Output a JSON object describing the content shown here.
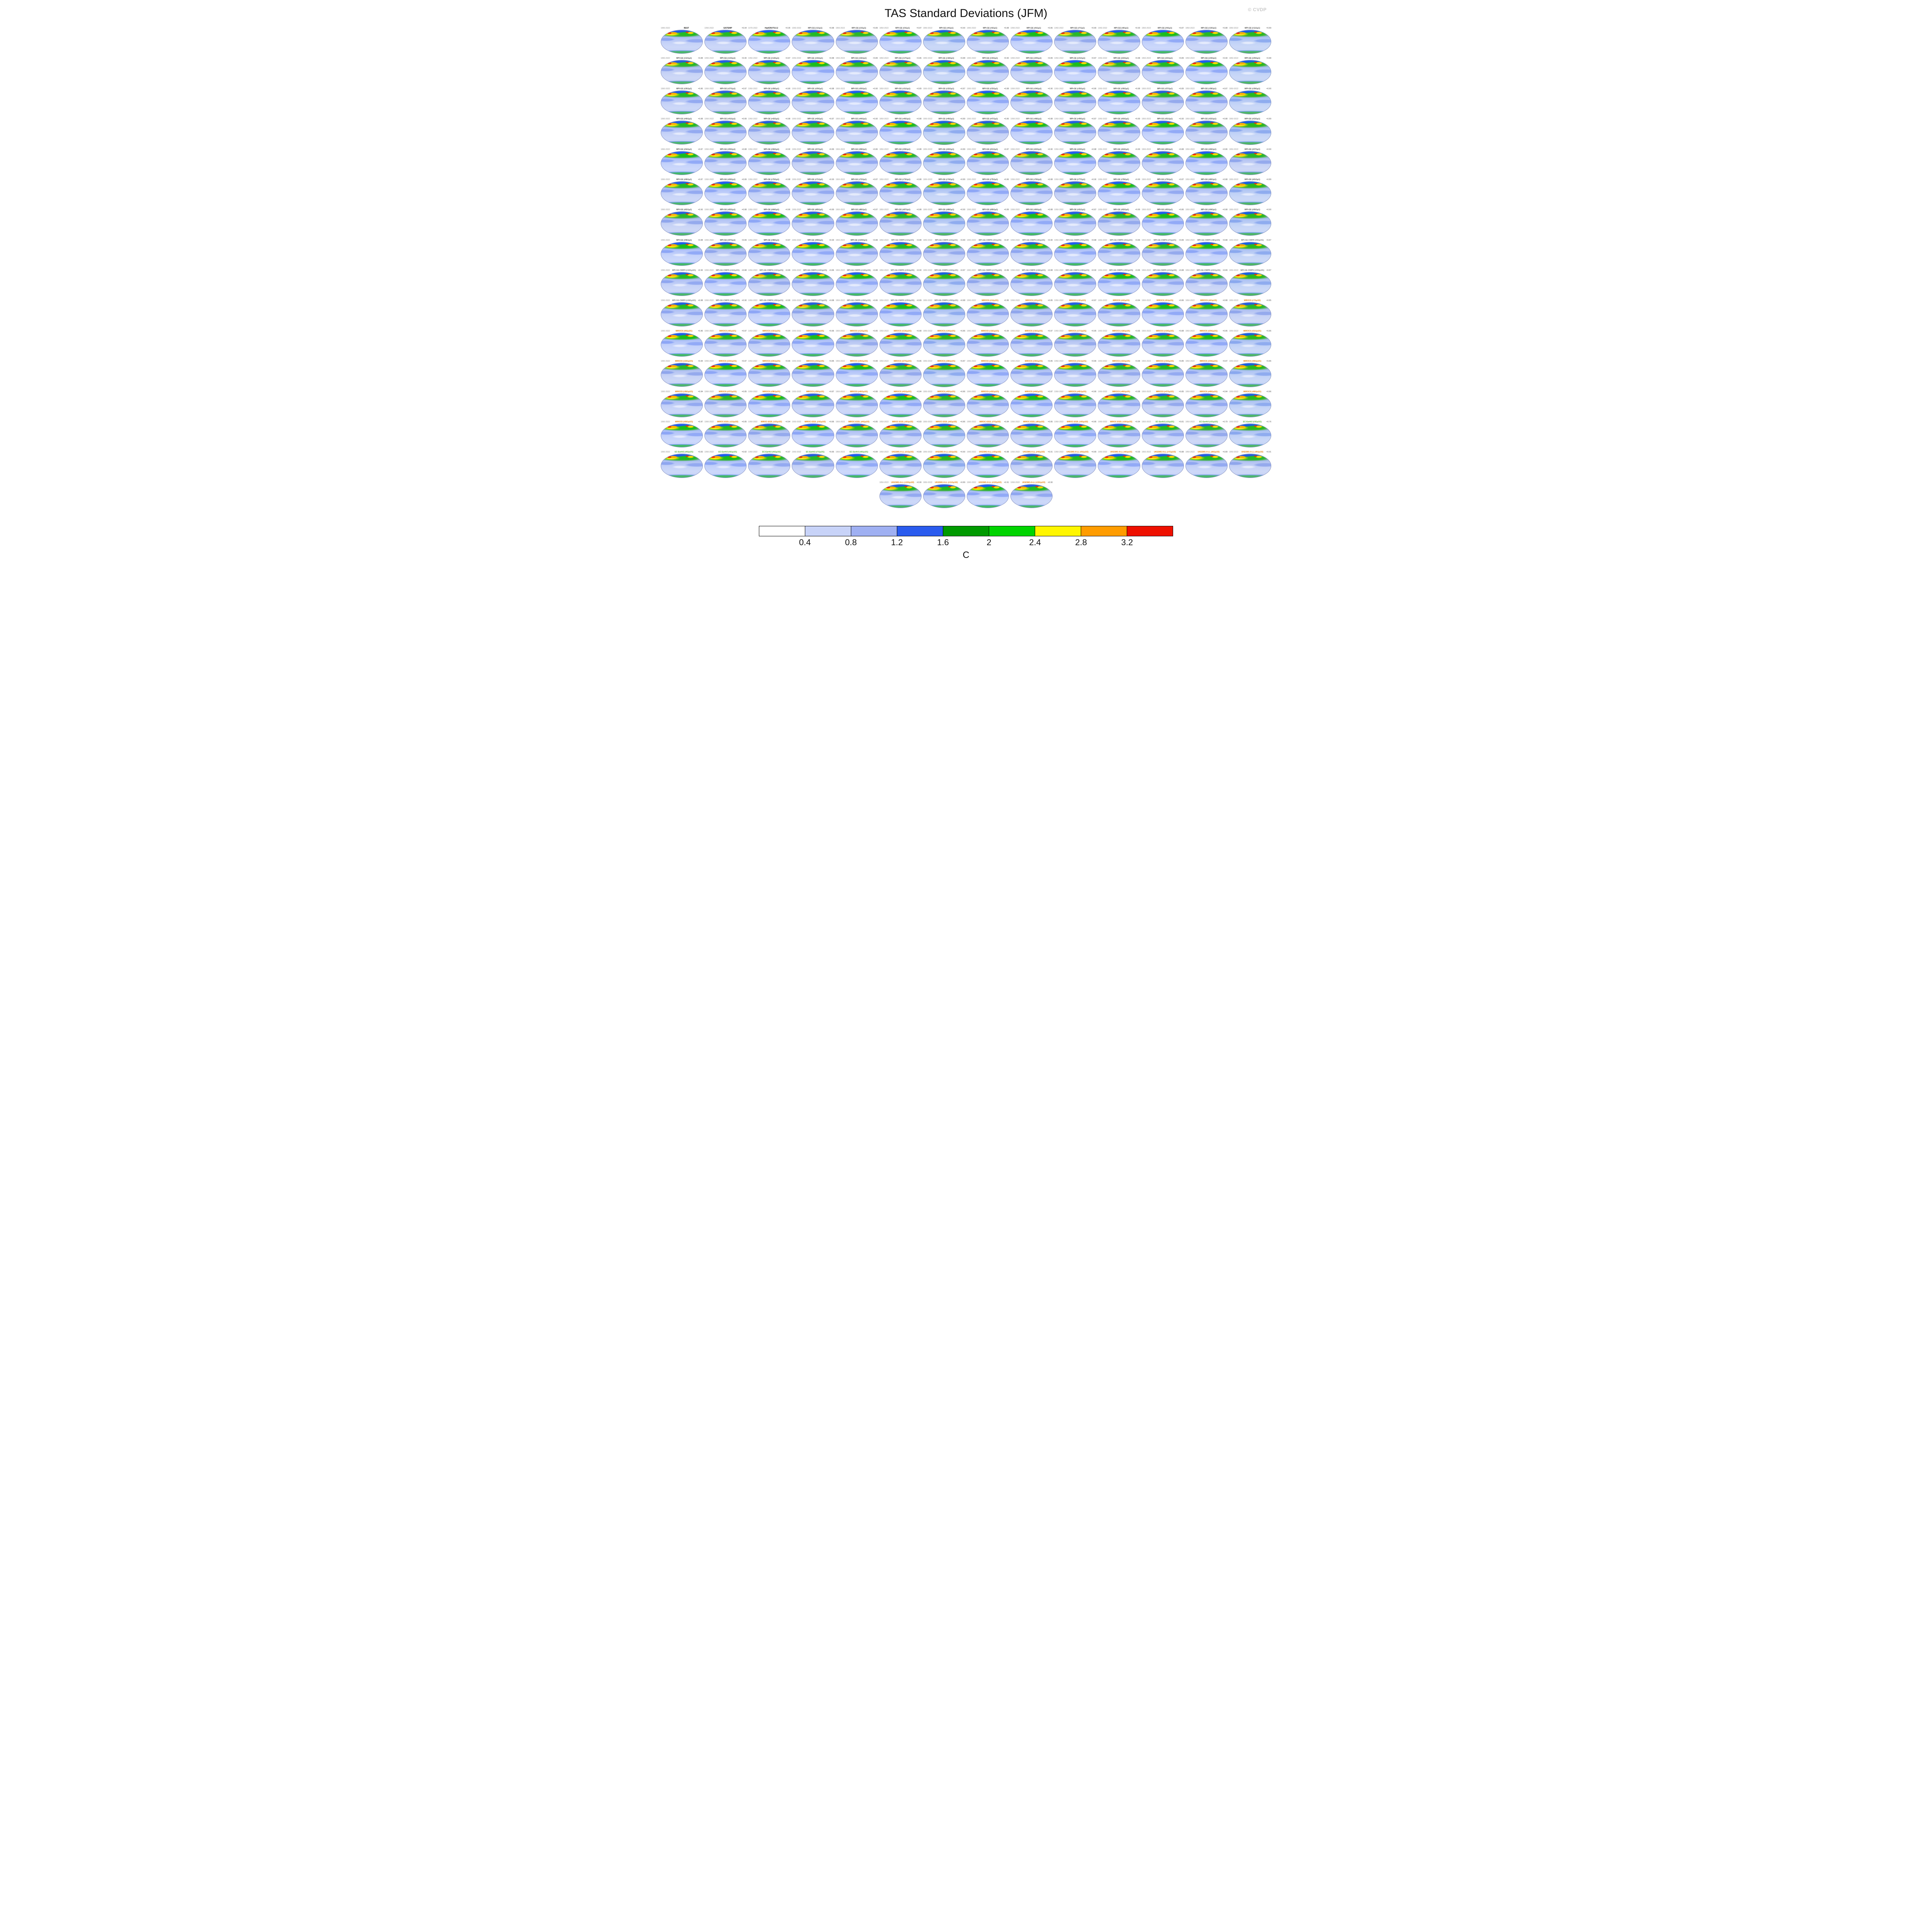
{
  "title": "TAS Standard Deviations (JFM)",
  "watermark": "© CVDP",
  "layout": {
    "grid_columns": 14,
    "partial_row_start_column": 6
  },
  "map_groups": [
    {
      "model": "BEST",
      "label_color": "#222222",
      "years": "1950-2022",
      "ids": [
        ""
      ],
      "values": [
        null
      ]
    },
    {
      "model": "GISTEMP",
      "label_color": "#222222",
      "years": "1950-2022",
      "ids": [
        ""
      ],
      "values": [
        0.94
      ]
    },
    {
      "model": "HadCRUT5.0.2",
      "label_color": "#222222",
      "years": "1979-2022",
      "ids": [
        ""
      ],
      "values": [
        0.95
      ]
    },
    {
      "model": "MPI-GE",
      "label_color": "#555555",
      "years": "1950-2022",
      "member_format": "(r#i1p1)",
      "start": 1,
      "count": 100,
      "values": [
        0.88,
        0.89,
        0.87,
        0.9,
        0.88,
        0.86,
        0.89,
        0.9,
        0.87,
        0.88,
        0.89,
        0.88,
        0.9,
        0.87,
        0.88,
        0.89,
        0.86,
        0.88,
        0.9,
        0.89,
        0.87,
        0.88,
        0.89,
        0.9,
        0.88,
        0.86,
        0.87,
        0.89,
        0.88,
        0.9,
        0.89,
        0.87,
        0.88,
        0.9,
        0.86,
        0.88,
        0.89,
        0.87,
        0.9,
        0.88,
        0.89,
        0.88,
        0.87,
        0.9,
        0.88,
        0.89,
        0.86,
        0.88,
        0.87,
        0.89,
        0.9,
        0.88,
        0.89,
        0.87,
        0.88,
        0.9,
        0.89,
        0.86,
        0.88,
        0.89,
        0.87,
        0.9,
        0.88,
        0.89,
        0.88,
        0.86,
        0.9,
        0.87,
        0.89,
        0.88,
        0.9,
        0.87,
        0.88,
        0.89,
        0.86,
        0.88,
        0.9,
        0.89,
        0.87,
        0.88,
        0.89,
        0.9,
        0.88,
        0.86,
        0.89,
        0.87,
        0.88,
        0.9,
        0.89,
        0.88,
        0.87,
        0.89,
        0.86,
        0.88,
        0.9,
        0.88,
        0.89,
        0.87,
        0.9,
        0.88
      ]
    },
    {
      "model": "MPI-GE-CMIP6",
      "label_color": "#777777",
      "years": "1950-2022",
      "member_format": "(r#i1p1f1)",
      "start": 1,
      "count": 30,
      "values": [
        0.88,
        0.89,
        0.87,
        0.9,
        0.88,
        0.86,
        0.89,
        0.88,
        0.87,
        0.9,
        0.88,
        0.89,
        0.86,
        0.88,
        0.9,
        0.87,
        0.89,
        0.88,
        0.9,
        0.86,
        0.88,
        0.89,
        0.87,
        0.88,
        0.9,
        0.89,
        0.88,
        0.86,
        0.89,
        0.88
      ]
    },
    {
      "model": "MIROC6",
      "label_color": "#e07b00",
      "years": "1950-2022",
      "member_format": "(r#i1p1f1)",
      "start": 1,
      "count": 50,
      "values": [
        0.86,
        0.85,
        0.87,
        0.84,
        0.86,
        0.88,
        0.85,
        0.86,
        0.87,
        0.84,
        0.86,
        0.85,
        0.88,
        0.86,
        0.84,
        0.87,
        0.85,
        0.86,
        0.88,
        0.85,
        0.86,
        0.84,
        0.87,
        0.86,
        0.85,
        0.88,
        0.86,
        0.87,
        0.84,
        0.85,
        0.86,
        0.88,
        0.85,
        0.87,
        0.86,
        0.84,
        0.85,
        0.86,
        0.87,
        0.88,
        0.84,
        0.86,
        0.85,
        0.87,
        0.86,
        0.88,
        0.85,
        0.84,
        0.86,
        0.87
      ]
    },
    {
      "model": "MIROC-ES2L",
      "label_color": "#e07b00",
      "years": "1950-2022",
      "member_format": "(r#i1p1f2)",
      "start": 1,
      "count": 10,
      "values": [
        0.85,
        0.84,
        0.86,
        0.85,
        0.83,
        0.86,
        0.84,
        0.85,
        0.86,
        0.84
      ]
    },
    {
      "model": "EC-Earth3",
      "label_color": "#4ea72e",
      "years": "1950-2022",
      "member_format": "(r#i1p1f1)",
      "start": 1,
      "count": 8,
      "values": [
        0.81,
        0.79,
        0.76,
        0.83,
        0.82,
        0.87,
        0.85,
        0.84
      ]
    },
    {
      "model": "UKESM1-0-LL",
      "label_color": "#e07b00",
      "years": "1950-2022",
      "member_format": "(r#i1p1f2)",
      "start": 1,
      "count": 13,
      "values": [
        0.89,
        0.9,
        0.88,
        0.91,
        0.89,
        0.9,
        0.88,
        0.89,
        0.91,
        0.9,
        0.89,
        0.91,
        0.9
      ]
    }
  ],
  "colorbar": {
    "colors": [
      "#ffffff",
      "#c8d3f8",
      "#9fb0f2",
      "#2a5bee",
      "#009a00",
      "#00d400",
      "#fff600",
      "#ff9c00",
      "#ee1000"
    ],
    "tick_labels": [
      "0.4",
      "0.8",
      "1.2",
      "1.6",
      "2",
      "2.4",
      "2.8",
      "3.2"
    ],
    "unit_label": "C"
  }
}
